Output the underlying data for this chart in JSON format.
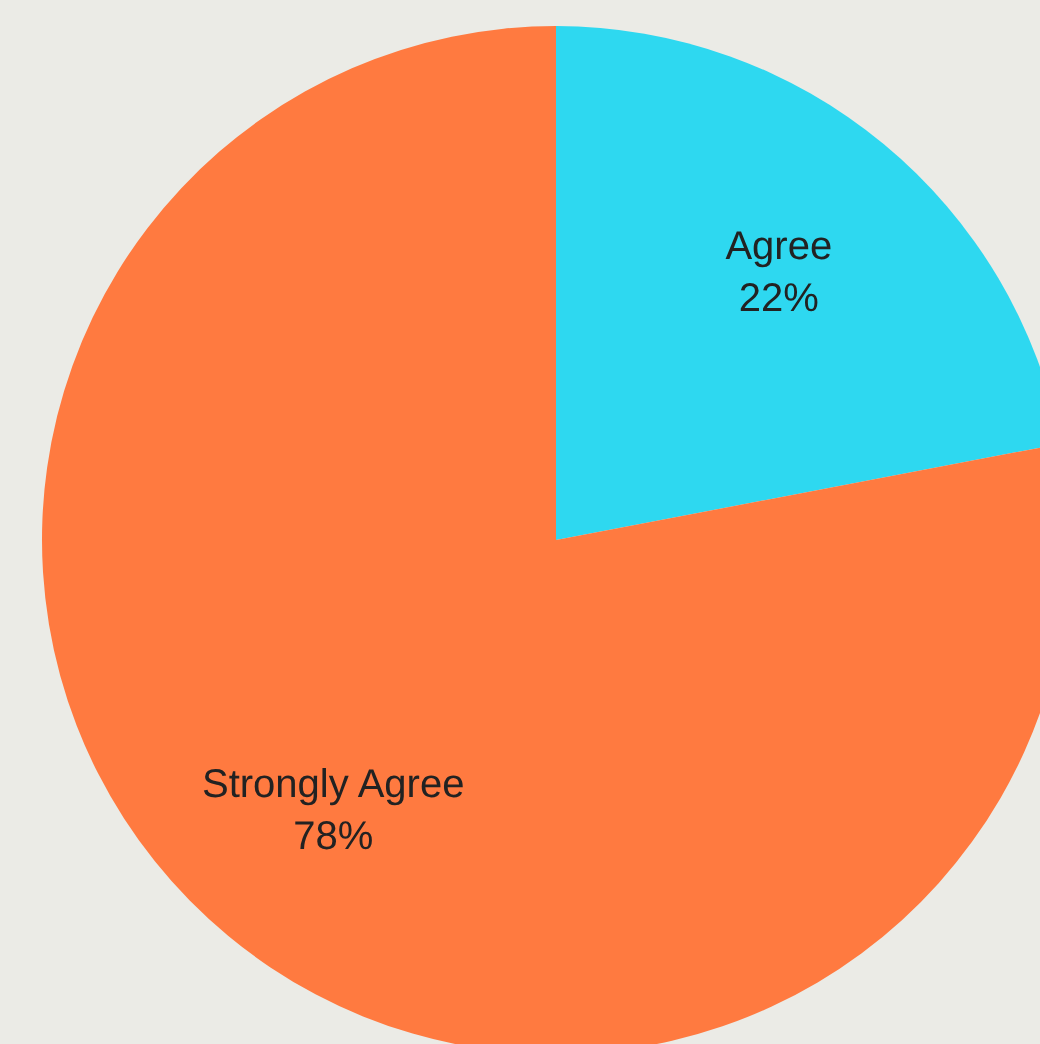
{
  "chart_data": {
    "type": "pie",
    "categories": [
      "Agree",
      "Strongly Agree"
    ],
    "values": [
      22,
      78
    ],
    "colors": [
      "#2ed8f0",
      "#ff7a40"
    ],
    "value_labels": [
      "22%",
      "78%"
    ]
  }
}
